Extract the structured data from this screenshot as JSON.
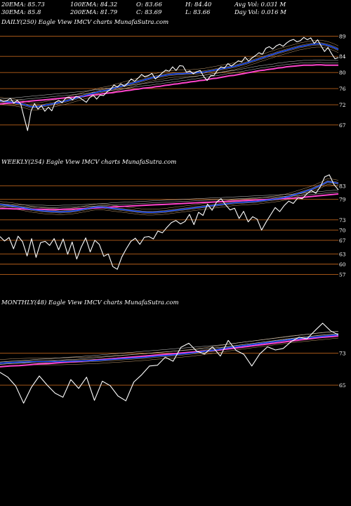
{
  "header": {
    "row1": [
      {
        "label": "20EMA: 85.73"
      },
      {
        "label": "100EMA: 84.32"
      },
      {
        "label": "O: 83.66"
      },
      {
        "label": "H: 84.40"
      },
      {
        "label": "Avg Vol: 0.031  M"
      }
    ],
    "row2": [
      {
        "label": "30EMA: 85.8"
      },
      {
        "label": "200EMA: 81.79"
      },
      {
        "label": "C: 83.69"
      },
      {
        "label": "L: 83.66"
      },
      {
        "label": "Day Vol: 0.016  M"
      }
    ]
  },
  "colors": {
    "price": "#ffffff",
    "ema_fast": "#2255ff",
    "ema_slow": "#ff44cc",
    "level": "#b8601a",
    "ema_band": "#c8a070"
  },
  "chart_data": [
    {
      "type": "line",
      "title": "DAILY(250) Eagle   View  IMCV charts MunafaSutra.com",
      "yticks": [
        89,
        84,
        80,
        76,
        72,
        67
      ],
      "ylim": [
        64,
        91
      ],
      "levels": [
        89,
        84,
        80,
        76,
        72,
        67
      ],
      "price": [
        73.2,
        72.8,
        73.0,
        73.6,
        72.4,
        73.1,
        72.2,
        68.8,
        65.6,
        70.5,
        72.3,
        70.9,
        71.8,
        70.4,
        71.4,
        70.5,
        72.6,
        73.1,
        72.5,
        73.6,
        73.9,
        73.2,
        74.1,
        73.8,
        73.2,
        72.6,
        73.8,
        74.4,
        73.4,
        74.4,
        74.3,
        75.2,
        75.8,
        76.9,
        76.4,
        77.2,
        76.6,
        77.4,
        78.4,
        77.8,
        78.6,
        79.5,
        78.9,
        79.2,
        79.8,
        78.4,
        79.1,
        79.9,
        80.6,
        80.3,
        81.4,
        80.5,
        81.7,
        81.6,
        80.1,
        80.4,
        79.7,
        80.2,
        80.5,
        79.0,
        78.0,
        79.2,
        79.3,
        80.6,
        81.4,
        81.1,
        82.2,
        81.6,
        82.2,
        82.9,
        82.6,
        83.8,
        82.8,
        83.6,
        84.2,
        84.9,
        84.5,
        86.0,
        86.4,
        85.8,
        86.6,
        87.0,
        86.5,
        87.3,
        87.9,
        88.2,
        87.6,
        87.9,
        88.7,
        88.1,
        88.6,
        87.2,
        88.1,
        86.6,
        85.2,
        86.2,
        84.7,
        83.4,
        83.7
      ],
      "ema20": [
        73.0,
        72.8,
        72.7,
        72.6,
        72.4,
        72.2,
        71.9,
        71.6,
        71.5,
        71.6,
        71.8,
        72.0,
        72.2,
        72.4,
        72.7,
        72.9,
        73.2,
        73.5,
        73.8,
        74.1,
        74.4,
        74.7,
        75.0,
        75.3,
        75.5,
        75.7,
        76.0,
        76.3,
        76.6,
        76.9,
        77.2,
        77.5,
        77.8,
        78.1,
        78.4,
        78.7,
        78.9,
        79.1,
        79.3,
        79.5,
        79.6,
        79.7,
        79.7,
        79.8,
        79.8,
        79.9,
        80.0,
        80.1,
        80.3,
        80.5,
        80.7,
        80.9,
        81.1,
        81.3,
        81.5,
        81.8,
        82.1,
        82.4,
        82.8,
        83.1,
        83.5,
        83.8,
        84.2,
        84.5,
        84.9,
        85.2,
        85.5,
        85.8,
        86.1,
        86.4,
        86.6,
        86.8,
        87.0,
        87.1,
        87.1,
        86.9,
        86.6,
        86.2,
        85.7
      ],
      "ema200": [
        72.2,
        72.3,
        72.4,
        72.5,
        72.6,
        72.7,
        72.8,
        72.9,
        73.0,
        73.1,
        73.2,
        73.3,
        73.4,
        73.5,
        73.6,
        73.7,
        73.8,
        73.9,
        74.0,
        74.1,
        74.2,
        74.4,
        74.5,
        74.6,
        74.8,
        74.9,
        75.0,
        75.2,
        75.3,
        75.5,
        75.6,
        75.8,
        75.9,
        76.1,
        76.2,
        76.3,
        76.5,
        76.6,
        76.8,
        76.9,
        77.1,
        77.2,
        77.4,
        77.5,
        77.7,
        77.8,
        78.0,
        78.1,
        78.3,
        78.5,
        78.6,
        78.8,
        79.0,
        79.2,
        79.3,
        79.5,
        79.7,
        79.9,
        80.1,
        80.3,
        80.5,
        80.6,
        80.8,
        80.9,
        81.1,
        81.2,
        81.4,
        81.5,
        81.6,
        81.7,
        81.8,
        81.8,
        81.8,
        81.9,
        81.9,
        81.8,
        81.8,
        81.8,
        81.8
      ]
    },
    {
      "type": "line",
      "title": "WEEKLY(254) Eagle   View  IMCV charts MunafaSutra.com",
      "yticks": [
        83,
        79,
        73,
        70,
        67,
        63,
        60,
        57
      ],
      "ylim": [
        54,
        88
      ],
      "levels": [
        83,
        79,
        73,
        70,
        67,
        63,
        60,
        57
      ],
      "price": [
        68.1,
        66.8,
        67.8,
        64.5,
        68.2,
        66.6,
        62.4,
        67.5,
        62.0,
        66.3,
        66.7,
        65.5,
        67.5,
        64.2,
        67.4,
        62.9,
        66.5,
        61.5,
        65.0,
        67.7,
        63.6,
        67.0,
        65.8,
        62.3,
        63.0,
        59.3,
        58.5,
        62.1,
        64.5,
        66.7,
        67.6,
        65.8,
        67.9,
        68.1,
        67.4,
        69.7,
        69.2,
        70.8,
        72.2,
        72.8,
        71.8,
        72.5,
        74.6,
        71.6,
        75.2,
        74.3,
        77.6,
        75.8,
        78.2,
        79.2,
        77.4,
        75.9,
        76.4,
        73.4,
        75.5,
        72.4,
        73.9,
        73.2,
        70.0,
        72.4,
        74.5,
        76.6,
        75.4,
        77.2,
        78.5,
        77.8,
        79.4,
        79.2,
        80.6,
        81.6,
        80.8,
        82.7,
        85.6,
        86.2,
        83.4,
        81.8
      ],
      "ema20": [
        77.5,
        77.3,
        77.1,
        76.9,
        76.6,
        76.3,
        76.0,
        75.8,
        75.6,
        75.5,
        75.4,
        75.3,
        75.4,
        75.5,
        75.7,
        76.0,
        76.3,
        76.6,
        76.8,
        76.7,
        76.5,
        76.3,
        76.1,
        75.9,
        75.7,
        75.5,
        75.3,
        75.2,
        75.2,
        75.3,
        75.4,
        75.6,
        75.8,
        76.0,
        76.2,
        76.4,
        76.6,
        76.8,
        77.0,
        77.2,
        77.4,
        77.6,
        77.8,
        78.0,
        78.1,
        78.2,
        78.3,
        78.4,
        78.6,
        78.8,
        79.0,
        79.2,
        79.5,
        79.9,
        80.4,
        80.9,
        81.4,
        81.9,
        82.6,
        83.3,
        84.2,
        84.0,
        83.7
      ],
      "ema200": [
        76.3,
        76.3,
        76.2,
        76.2,
        76.1,
        76.1,
        76.1,
        76.0,
        76.0,
        76.1,
        76.1,
        76.2,
        76.3,
        76.4,
        76.5,
        76.6,
        76.8,
        76.9,
        77.0,
        77.1,
        77.2,
        77.3,
        77.4,
        77.5,
        77.6,
        77.7,
        77.8,
        77.9,
        78.0,
        78.1,
        78.2,
        78.3,
        78.4,
        78.5,
        78.6,
        78.7,
        78.8,
        78.9,
        79.0,
        79.1,
        79.2,
        79.3,
        79.4,
        79.6,
        79.8,
        80.0,
        80.2,
        80.4,
        80.6
      ]
    },
    {
      "type": "line",
      "title": "MONTHLY(48) Eagle   View  IMCV charts MunafaSutra.com",
      "yticks": [
        73,
        65
      ],
      "ylim": [
        55,
        84
      ],
      "levels": [
        73,
        65
      ],
      "price": [
        68.2,
        67.0,
        64.8,
        60.5,
        64.5,
        67.3,
        65.0,
        63.0,
        62.0,
        66.4,
        64.2,
        67.0,
        61.2,
        66.0,
        64.9,
        62.3,
        61.1,
        65.8,
        67.6,
        69.8,
        70.0,
        72.0,
        71.0,
        74.5,
        75.5,
        73.5,
        72.8,
        74.6,
        72.3,
        76.2,
        73.7,
        72.7,
        69.8,
        72.8,
        74.6,
        73.8,
        74.2,
        75.9,
        77.0,
        76.6,
        78.6,
        80.5,
        78.6,
        77.6
      ],
      "ema20": [
        70.5,
        70.7,
        70.8,
        70.9,
        70.9,
        70.9,
        71.0,
        71.1,
        71.2,
        71.4,
        71.6,
        71.8,
        72.0,
        72.3,
        72.5,
        72.8,
        73.1,
        73.5,
        73.9,
        74.4,
        74.8,
        75.2,
        75.6,
        76.0,
        76.4,
        76.7,
        77.0,
        77.3,
        77.6
      ],
      "ema200": [
        69.6,
        69.8,
        69.9,
        70.1,
        70.3,
        70.4,
        70.6,
        70.8,
        70.9,
        71.1,
        71.3,
        71.5,
        71.7,
        71.9,
        72.1,
        72.3,
        72.5,
        72.7,
        72.9,
        73.1,
        73.3,
        73.5,
        73.7,
        73.9,
        74.2,
        74.5,
        74.8,
        75.1,
        75.4,
        75.7,
        76.0,
        76.3,
        76.6,
        76.9,
        77.1,
        77.3
      ]
    }
  ]
}
